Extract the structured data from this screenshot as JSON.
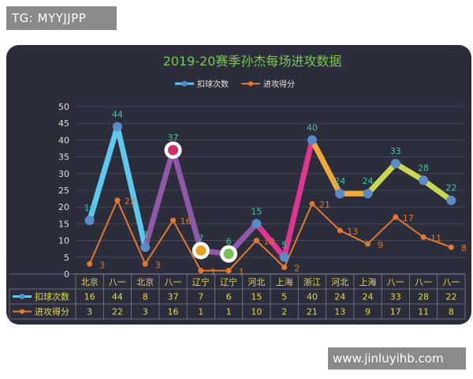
{
  "watermarks": {
    "top_left": "TG: MYYJJPP",
    "bottom_right": "www.jinluyihb.com"
  },
  "colors": {
    "background": "#2b2d3b",
    "title": "#78c850",
    "axis_text": "#e0e0e0",
    "table_text": "#e8d84a",
    "data_label": "#3fc8a8",
    "series2": "#e07830",
    "grid": "#555869"
  },
  "chart_data": {
    "type": "line",
    "title": "2019-20赛季孙杰每场进攻数据",
    "categories": [
      "北京",
      "八一",
      "北京",
      "八一",
      "辽宁",
      "辽宁",
      "河北",
      "上海",
      "浙江",
      "河北",
      "上海",
      "八一",
      "八一",
      "八一"
    ],
    "ylim": [
      0,
      50
    ],
    "yticks": [
      "0",
      "5",
      "10",
      "15",
      "20",
      "25",
      "30",
      "35",
      "40",
      "45",
      "50"
    ],
    "grid": true,
    "legend_position": "top",
    "series": [
      {
        "name": "扣球次数",
        "values": [
          16,
          44,
          8,
          37,
          7,
          6,
          15,
          5,
          40,
          24,
          24,
          33,
          28,
          22
        ],
        "segment_colors": [
          "#5ec8f0",
          "#5ec8f0",
          "#8e5aa8",
          "#8e5aa8",
          "#8e5aa8",
          "#8e5aa8",
          "#e03590",
          "#e03590",
          "#f0a838",
          "#f0a838",
          "#c8d850",
          "#c8d850",
          "#c8d850"
        ],
        "marker_color": "#5a8ac8",
        "highlight_markers": [
          {
            "index": 3,
            "color": "#d0306a"
          },
          {
            "index": 4,
            "color": "#f0a020"
          },
          {
            "index": 5,
            "color": "#78c050"
          }
        ]
      },
      {
        "name": "进攻得分",
        "values": [
          3,
          22,
          3,
          16,
          1,
          1,
          10,
          2,
          21,
          13,
          9,
          17,
          11,
          8
        ],
        "color": "#e07830"
      }
    ]
  }
}
